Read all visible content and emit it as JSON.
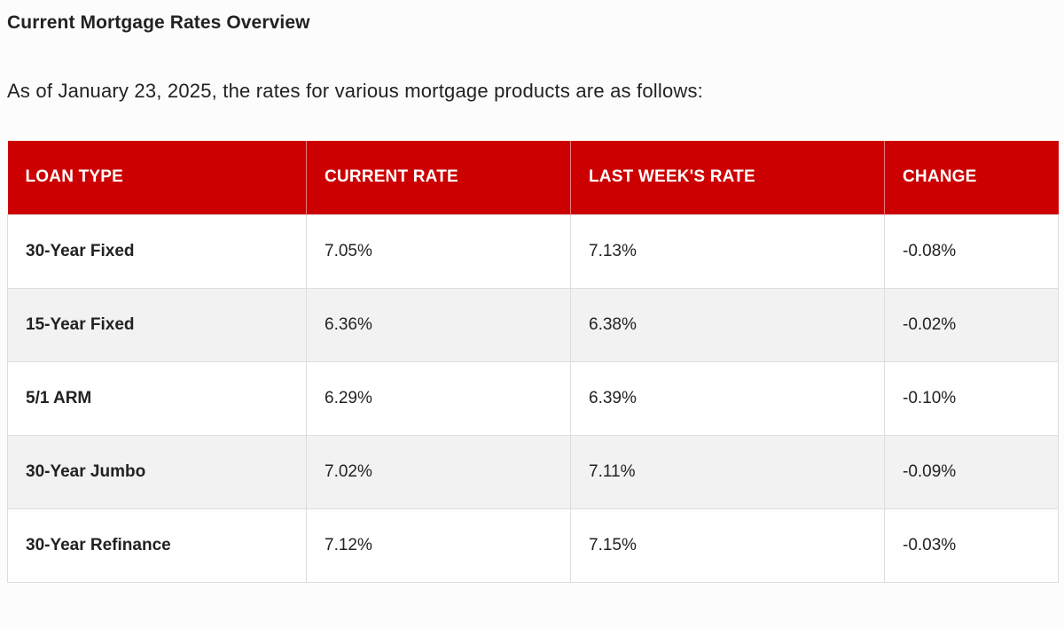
{
  "title": "Current Mortgage Rates Overview",
  "intro": "As of January 23, 2025, the rates for various mortgage products are as follows:",
  "colors": {
    "header_bg": "#cc0000",
    "header_text": "#ffffff",
    "row_alt": "#f2f2f2",
    "border": "#dddddd"
  },
  "table": {
    "headers": [
      "LOAN TYPE",
      "CURRENT RATE",
      "LAST WEEK'S RATE",
      "CHANGE"
    ],
    "rows": [
      {
        "loan_type": "30-Year Fixed",
        "current_rate": "7.05%",
        "last_week_rate": "7.13%",
        "change": "-0.08%"
      },
      {
        "loan_type": "15-Year Fixed",
        "current_rate": "6.36%",
        "last_week_rate": "6.38%",
        "change": "-0.02%"
      },
      {
        "loan_type": "5/1 ARM",
        "current_rate": "6.29%",
        "last_week_rate": "6.39%",
        "change": "-0.10%"
      },
      {
        "loan_type": "30-Year Jumbo",
        "current_rate": "7.02%",
        "last_week_rate": "7.11%",
        "change": "-0.09%"
      },
      {
        "loan_type": "30-Year Refinance",
        "current_rate": "7.12%",
        "last_week_rate": "7.15%",
        "change": "-0.03%"
      }
    ]
  }
}
